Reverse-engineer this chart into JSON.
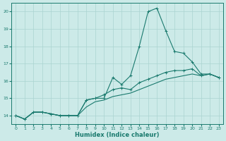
{
  "xlabel": "Humidex (Indice chaleur)",
  "x_values": [
    0,
    1,
    2,
    3,
    4,
    5,
    6,
    7,
    8,
    9,
    10,
    11,
    12,
    13,
    14,
    15,
    16,
    17,
    18,
    19,
    20,
    21,
    22,
    23
  ],
  "line1": [
    14.0,
    13.8,
    14.2,
    14.2,
    14.1,
    14.0,
    14.0,
    14.0,
    14.9,
    15.0,
    15.0,
    16.2,
    15.8,
    16.3,
    18.0,
    20.0,
    20.2,
    18.9,
    17.7,
    17.6,
    17.1,
    16.4,
    16.4,
    16.2
  ],
  "line2": [
    14.0,
    13.8,
    14.2,
    14.2,
    14.1,
    14.0,
    14.0,
    14.0,
    14.9,
    15.0,
    15.2,
    15.5,
    15.6,
    15.5,
    15.9,
    16.1,
    16.3,
    16.5,
    16.6,
    16.6,
    16.7,
    16.3,
    16.4,
    16.2
  ],
  "line3": [
    14.0,
    13.8,
    14.2,
    14.2,
    14.1,
    14.0,
    14.0,
    14.0,
    14.5,
    14.8,
    14.9,
    15.1,
    15.2,
    15.3,
    15.5,
    15.7,
    15.9,
    16.1,
    16.2,
    16.3,
    16.4,
    16.3,
    16.4,
    16.2
  ],
  "line_color": "#1a7a6e",
  "bg_color": "#cceae8",
  "grid_color": "#aad4d1",
  "ylim": [
    13.5,
    20.5
  ],
  "xlim": [
    -0.5,
    23.5
  ],
  "yticks": [
    14,
    15,
    16,
    17,
    18,
    19,
    20
  ],
  "xticks": [
    0,
    1,
    2,
    3,
    4,
    5,
    6,
    7,
    8,
    9,
    10,
    11,
    12,
    13,
    14,
    15,
    16,
    17,
    18,
    19,
    20,
    21,
    22,
    23
  ]
}
